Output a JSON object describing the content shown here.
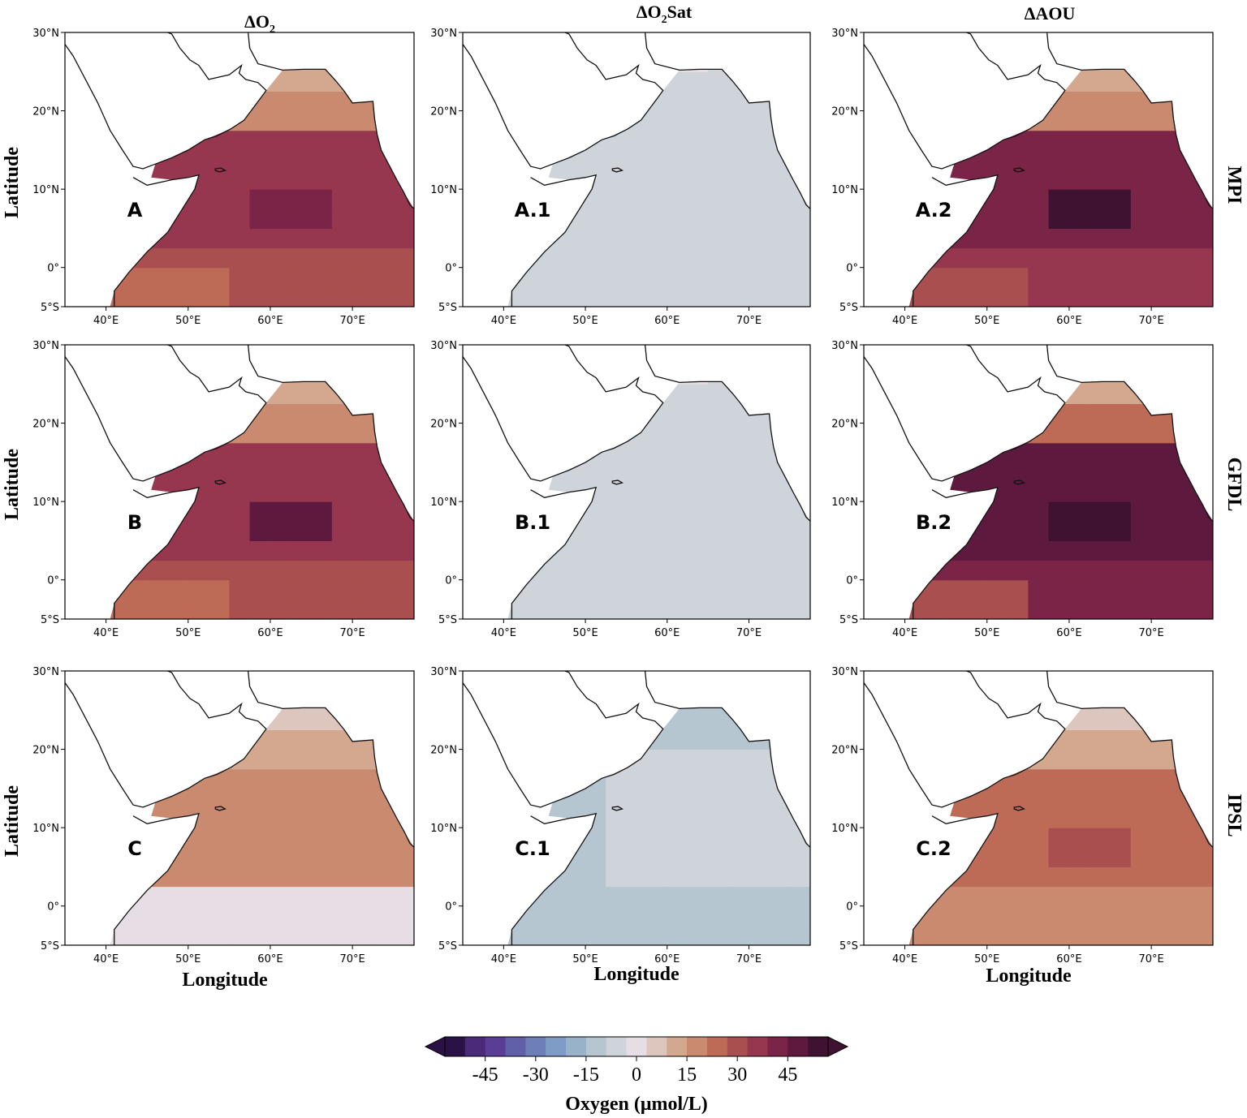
{
  "columns": [
    {
      "main": "ΔO",
      "sub": "2",
      "tail": ""
    },
    {
      "main": "ΔO",
      "sub": "2",
      "tail": "Sat"
    },
    {
      "main": "ΔAOU",
      "sub": "",
      "tail": ""
    }
  ],
  "rows": [
    "MPI",
    "GFDL",
    "IPSL"
  ],
  "axis": {
    "ylabel": "Latitude",
    "xlabel": "Longitude"
  },
  "lat_ticks": [
    "30°N",
    "20°N",
    "10°N",
    "0°",
    "5°S"
  ],
  "lon_ticks": [
    "40°E",
    "50°E",
    "60°E",
    "70°E"
  ],
  "panels": [
    {
      "label": "A",
      "row": 0,
      "col": 0,
      "pattern": "o2",
      "intensity": 0.75
    },
    {
      "label": "A.1",
      "row": 0,
      "col": 1,
      "pattern": "sat",
      "intensity": 0.0
    },
    {
      "label": "A.2",
      "row": 0,
      "col": 2,
      "pattern": "aou",
      "intensity": 0.9
    },
    {
      "label": "B",
      "row": 1,
      "col": 0,
      "pattern": "o2",
      "intensity": 0.85
    },
    {
      "label": "B.1",
      "row": 1,
      "col": 1,
      "pattern": "sat",
      "intensity": 0.0
    },
    {
      "label": "B.2",
      "row": 1,
      "col": 2,
      "pattern": "aou",
      "intensity": 1.0
    },
    {
      "label": "C",
      "row": 2,
      "col": 0,
      "pattern": "o2",
      "intensity": 0.3
    },
    {
      "label": "C.1",
      "row": 2,
      "col": 1,
      "pattern": "sat2",
      "intensity": 0.0
    },
    {
      "label": "C.2",
      "row": 2,
      "col": 2,
      "pattern": "aou",
      "intensity": 0.45
    }
  ],
  "colorbar": {
    "title": "Oxygen (μmol/L)",
    "ticks": [
      "-45",
      "-30",
      "-15",
      "0",
      "15",
      "30",
      "45"
    ],
    "colors": [
      "#2b1246",
      "#4b2a7a",
      "#5b3d96",
      "#6060a8",
      "#6e7eb6",
      "#7f9cc6",
      "#98b3c9",
      "#b5c6d0",
      "#cfd4db",
      "#e7dde4",
      "#ddc6bd",
      "#d3a88f",
      "#c98a6f",
      "#bd6a57",
      "#aa4f4f",
      "#96364f",
      "#7a2447",
      "#5e1a3e",
      "#3f1232"
    ]
  }
}
